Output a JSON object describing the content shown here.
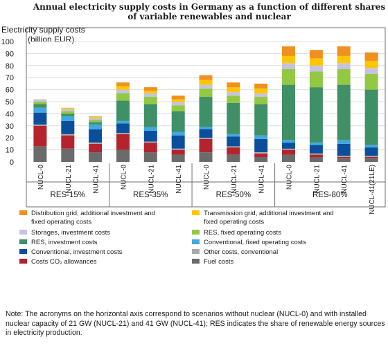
{
  "chart_data": {
    "type": "bar",
    "stacked": true,
    "title_lines": [
      "Annual electricity supply costs in Germany as a function of different shares",
      "of variable renewables and nuclear"
    ],
    "ylabel_lines": [
      "Electricity supply costs",
      "(billion EUR)"
    ],
    "ylim": [
      0,
      100
    ],
    "yticks": [
      0,
      10,
      20,
      30,
      40,
      50,
      60,
      70,
      80,
      90,
      100
    ],
    "grid": true,
    "legend_position": "bottom",
    "categories": [
      "NUCL-0",
      "NUCL-21",
      "NUCL-41",
      "NUCL-0",
      "NUCL-21",
      "NUCL-41",
      "NUCL-0",
      "NUCL-21",
      "NUCL-41",
      "NUCL-0",
      "NUCL-21",
      "NUCL-41",
      "NUCL-41(21LE)"
    ],
    "groups": [
      {
        "label": "RES-15%",
        "size": 3
      },
      {
        "label": "RES-35%",
        "size": 3
      },
      {
        "label": "RES-50%",
        "size": 3
      },
      {
        "label": "RES-80%",
        "size": 4
      }
    ],
    "series": [
      {
        "name": "Fuel costs",
        "color": "#6b6b6b",
        "values": [
          13,
          11,
          8,
          10,
          8,
          6,
          8,
          6,
          4,
          6,
          4,
          3,
          3
        ]
      },
      {
        "name": "Costs CO₂ allowances",
        "color": "#b5232e",
        "values": [
          17,
          11,
          7,
          13,
          8,
          4,
          11,
          6,
          3,
          4,
          2,
          1,
          1
        ]
      },
      {
        "name": "Other costs, conventional",
        "color": "#a9a9a9",
        "values": [
          1,
          1,
          1,
          1,
          1,
          1,
          1,
          1,
          1,
          1,
          1,
          1,
          1
        ]
      },
      {
        "name": "Conventional, investment costs",
        "color": "#0b4f9c",
        "values": [
          10,
          11,
          11,
          8,
          9,
          11,
          7,
          8,
          11,
          5,
          7,
          10,
          7
        ]
      },
      {
        "name": "Conventional, fixed operating costs",
        "color": "#41a8e0",
        "values": [
          4,
          4,
          4,
          2,
          3,
          3,
          2,
          2,
          3,
          2,
          2,
          3,
          2
        ]
      },
      {
        "name": "RES, investment costs",
        "color": "#3f8f67",
        "values": [
          3,
          2,
          2,
          17,
          19,
          17,
          25,
          26,
          26,
          46,
          46,
          46,
          46
        ]
      },
      {
        "name": "RES, fixed operating costs",
        "color": "#92c842",
        "values": [
          2,
          2,
          2,
          6,
          6,
          5,
          7,
          6,
          6,
          13,
          13,
          13,
          13
        ]
      },
      {
        "name": "Storages, investment costs",
        "color": "#c5c3de",
        "values": [
          2,
          2,
          2,
          3,
          3,
          3,
          3,
          3,
          3,
          5,
          5,
          5,
          5
        ]
      },
      {
        "name": "Transmission grid, additional investment and fixed operating costs",
        "color": "#ffc600",
        "values": [
          0,
          1,
          1,
          3,
          2,
          2,
          4,
          4,
          4,
          6,
          6,
          6,
          6
        ]
      },
      {
        "name": "Distribution grid, additional investment and fixed operating costs",
        "color": "#f0901e",
        "values": [
          0,
          0,
          0,
          3,
          3,
          3,
          4,
          4,
          4,
          8,
          7,
          8,
          7
        ]
      }
    ],
    "legend_layout": [
      {
        "series": 9,
        "lines": [
          "Distribution grid, additional investment and",
          "fixed operating costs"
        ]
      },
      {
        "series": 8,
        "lines": [
          "Transmission grid, additional investment and",
          "fixed operating costs"
        ]
      },
      {
        "series": 7,
        "lines": [
          "Storages, investment costs"
        ]
      },
      {
        "series": 6,
        "lines": [
          "RES, fixed operating costs"
        ]
      },
      {
        "series": 5,
        "lines": [
          "RES, investment costs"
        ]
      },
      {
        "series": 4,
        "lines": [
          "Conventional, fixed operating costs"
        ]
      },
      {
        "series": 3,
        "lines": [
          "Conventional, investment costs"
        ]
      },
      {
        "series": 2,
        "lines": [
          "Other costs, conventional"
        ]
      },
      {
        "series": 1,
        "lines": [
          "Costs CO₂ allowances"
        ]
      },
      {
        "series": 0,
        "lines": [
          "Fuel costs"
        ]
      }
    ]
  },
  "note": "Note: The acronyms on the horizontal axis correspond to scenarios without nuclear (NUCL-0) and with installed nuclear capacity of 21 GW (NUCL-21) and 41 GW (NUCL-41); RES indicates the share of renewable energy sources in electricity production."
}
